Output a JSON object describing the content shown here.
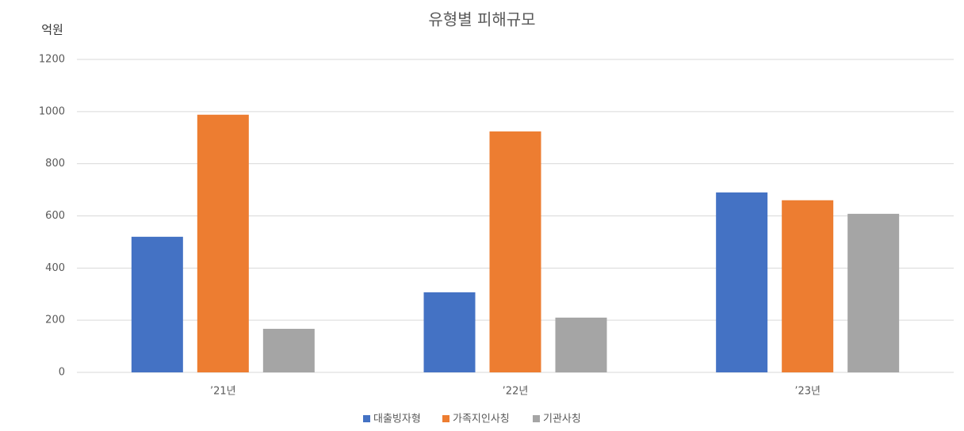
{
  "chart_data": {
    "type": "bar",
    "title": "유형별 피해규모",
    "y_label": "억원",
    "categories": [
      "’21년",
      "’22년",
      "’23년"
    ],
    "series": [
      {
        "name": "대출빙자형",
        "color": "#4472c4",
        "values": [
          520,
          307,
          690
        ]
      },
      {
        "name": "가족지인사칭",
        "color": "#ed7d31",
        "values": [
          988,
          924,
          660
        ]
      },
      {
        "name": "기관사칭",
        "color": "#a5a5a5",
        "values": [
          167,
          210,
          608
        ]
      }
    ],
    "ylim": [
      0,
      1200
    ],
    "yticks": [
      0,
      200,
      400,
      600,
      800,
      1000,
      1200
    ],
    "grid": true,
    "legend": "bottom"
  }
}
